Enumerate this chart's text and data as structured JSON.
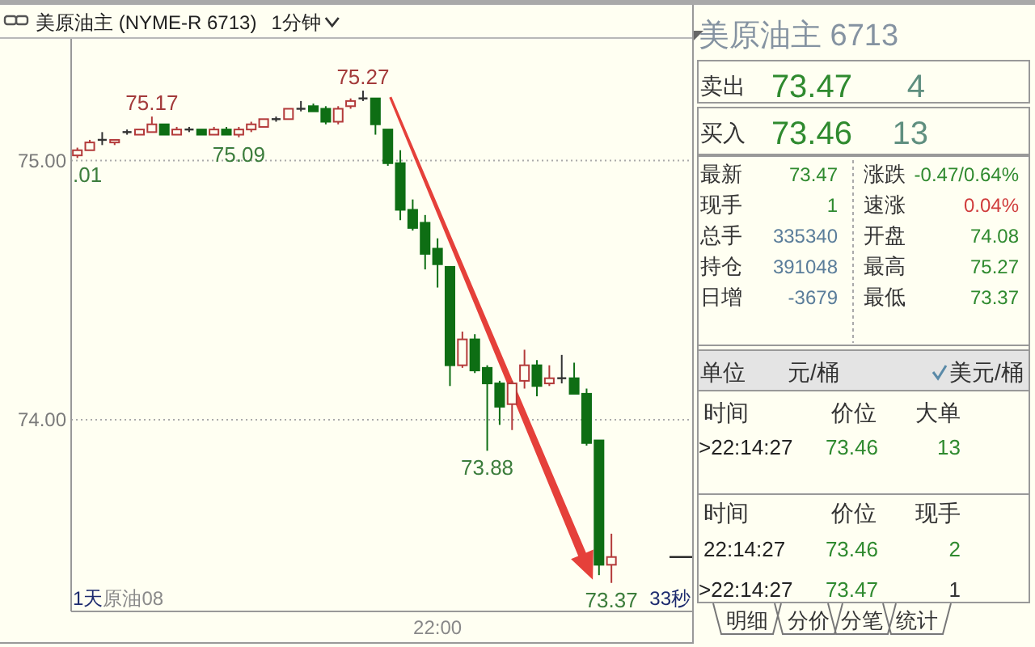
{
  "chart_data": [
    {
      "type": "candlestick",
      "title": "美原油主 (NYME-R 6713)",
      "subtitle": "1分钟",
      "categories": [
        null,
        null,
        null,
        null,
        null,
        null,
        null,
        null,
        null,
        null,
        null,
        null,
        null,
        null,
        null,
        null,
        null,
        null,
        null,
        null,
        null,
        null,
        null,
        null,
        null,
        null,
        null,
        null,
        null,
        "22:00",
        null,
        null,
        null,
        null,
        null,
        null,
        null,
        null,
        null,
        null,
        null,
        null,
        null,
        null
      ],
      "ohlc": [
        [
          75.02,
          75.05,
          75.01,
          75.04
        ],
        [
          75.04,
          75.08,
          75.04,
          75.07
        ],
        [
          75.08,
          75.11,
          75.06,
          75.08
        ],
        [
          75.07,
          75.08,
          75.06,
          75.08
        ],
        [
          75.11,
          75.12,
          75.1,
          75.11
        ],
        [
          75.1,
          75.12,
          75.1,
          75.12
        ],
        [
          75.11,
          75.17,
          75.11,
          75.14
        ],
        [
          75.14,
          75.14,
          75.1,
          75.1
        ],
        [
          75.1,
          75.13,
          75.1,
          75.12
        ],
        [
          75.12,
          75.13,
          75.11,
          75.12
        ],
        [
          75.12,
          75.12,
          75.1,
          75.1
        ],
        [
          75.1,
          75.13,
          75.1,
          75.12
        ],
        [
          75.12,
          75.13,
          75.1,
          75.1
        ],
        [
          75.1,
          75.13,
          75.09,
          75.12
        ],
        [
          75.12,
          75.15,
          75.11,
          75.14
        ],
        [
          75.13,
          75.16,
          75.13,
          75.16
        ],
        [
          75.16,
          75.17,
          75.15,
          75.16
        ],
        [
          75.16,
          75.2,
          75.16,
          75.2
        ],
        [
          75.2,
          75.23,
          75.19,
          75.2
        ],
        [
          75.21,
          75.22,
          75.19,
          75.19
        ],
        [
          75.2,
          75.21,
          75.14,
          75.15
        ],
        [
          75.15,
          75.21,
          75.14,
          75.2
        ],
        [
          75.21,
          75.24,
          75.2,
          75.23
        ],
        [
          75.24,
          75.27,
          75.23,
          75.24
        ],
        [
          75.24,
          75.24,
          75.1,
          75.14
        ],
        [
          75.12,
          75.12,
          74.98,
          74.99
        ],
        [
          74.99,
          75.04,
          74.77,
          74.81
        ],
        [
          74.81,
          74.85,
          74.73,
          74.74
        ],
        [
          74.76,
          74.79,
          74.58,
          74.64
        ],
        [
          74.66,
          74.7,
          74.51,
          74.6
        ],
        [
          74.59,
          74.59,
          74.13,
          74.21
        ],
        [
          74.21,
          74.34,
          74.2,
          74.31
        ],
        [
          74.31,
          74.33,
          74.18,
          74.19
        ],
        [
          74.2,
          74.21,
          73.88,
          74.14
        ],
        [
          74.14,
          74.15,
          73.98,
          74.05
        ],
        [
          74.06,
          74.15,
          73.96,
          74.14
        ],
        [
          74.15,
          74.27,
          74.12,
          74.21
        ],
        [
          74.21,
          74.23,
          74.09,
          74.13
        ],
        [
          74.14,
          74.21,
          74.13,
          74.16
        ],
        [
          74.16,
          74.25,
          74.14,
          74.16
        ],
        [
          74.16,
          74.22,
          74.1,
          74.1
        ],
        [
          74.1,
          74.12,
          73.9,
          73.91
        ],
        [
          73.92,
          73.92,
          73.4,
          73.44
        ],
        [
          73.44,
          73.56,
          73.37,
          73.47
        ]
      ],
      "colors": [
        "#b33a3a",
        "#b33a3a",
        "#333333",
        "#b33a3a",
        "#333333",
        "#b33a3a",
        "#b33a3a",
        "#0e6e14",
        "#b33a3a",
        "#333333",
        "#0e6e14",
        "#b33a3a",
        "#0e6e14",
        "#b33a3a",
        "#b33a3a",
        "#b33a3a",
        "#333333",
        "#b33a3a",
        "#333333",
        "#0e6e14",
        "#0e6e14",
        "#b33a3a",
        "#b33a3a",
        "#333333",
        "#0e6e14",
        "#0e6e14",
        "#0e6e14",
        "#0e6e14",
        "#0e6e14",
        "#0e6e14",
        "#0e6e14",
        "#b33a3a",
        "#0e6e14",
        "#0e6e14",
        "#0e6e14",
        "#b33a3a",
        "#b33a3a",
        "#0e6e14",
        "#b33a3a",
        "#333333",
        "#0e6e14",
        "#0e6e14",
        "#0e6e14",
        "#b33a3a"
      ],
      "ylim": [
        73.26,
        75.47
      ],
      "yticks": [
        {
          "value": 75,
          "label": "75.00"
        },
        {
          "value": 74,
          "label": "74.00"
        }
      ],
      "grid": "y",
      "annotations": [
        "75.17",
        "75.27",
        ".01",
        "75.09",
        "73.88",
        "73.37",
        "1天",
        "原油08",
        "33秒"
      ]
    },
    {
      "type": "other",
      "title": "美原油主 6713",
      "annotations": [
        "卖出",
        "73.47",
        "4",
        "买入",
        "73.46",
        "13",
        "最新",
        "73.47",
        "涨跌",
        "-0.47/0.64%",
        "现手",
        "1",
        "速涨",
        "0.04%",
        "总手",
        "335340",
        "开盘",
        "74.08",
        "持仓",
        "391048",
        "最高",
        "75.27",
        "日增",
        "-3679",
        "最低",
        "73.37",
        "单位",
        "元/桶",
        "美元/桶",
        "时间",
        "价位",
        "大单",
        ">22:14:27",
        "73.46",
        "13",
        "时间",
        "价位",
        "现手",
        "22:14:27",
        "73.46",
        "2",
        ">22:14:27",
        "73.47",
        "1",
        "明细",
        "分价",
        "分笔",
        "统计"
      ]
    }
  ]
}
